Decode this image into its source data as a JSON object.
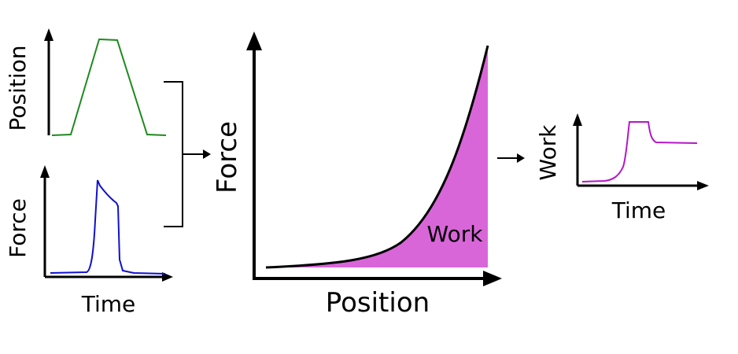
{
  "colors": {
    "position_curve": "#1e8a1e",
    "force_curve": "#1010d0",
    "work_curve": "#b416c8",
    "work_fill": "#d966d9",
    "axis": "#000000"
  },
  "panels": {
    "position_vs_time": {
      "ylabel": "Position"
    },
    "force_vs_time": {
      "ylabel": "Force",
      "xlabel": "Time"
    },
    "force_vs_position": {
      "ylabel": "Force",
      "xlabel": "Position",
      "area_label": "Work"
    },
    "work_vs_time": {
      "ylabel": "Work",
      "xlabel": "Time"
    }
  }
}
